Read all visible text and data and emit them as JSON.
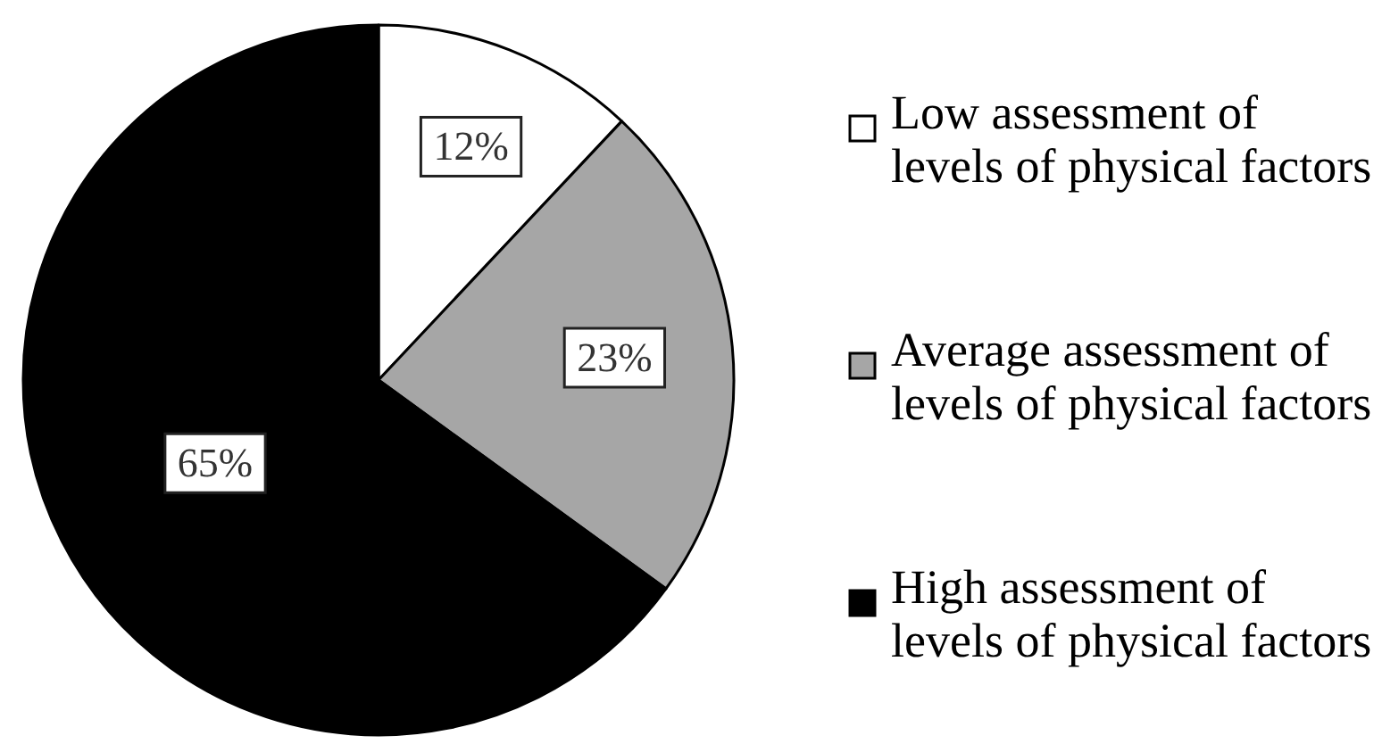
{
  "chart_data": {
    "type": "pie",
    "categories": [
      "Low assessment of levels of physical factors",
      "Average assessment of levels of physical factors",
      "High assessment of levels of physical factors"
    ],
    "values": [
      12,
      23,
      65
    ],
    "colors": [
      "#ffffff",
      "#a6a6a6",
      "#000000"
    ],
    "value_labels": [
      "12%",
      "23%",
      "65%"
    ],
    "legend": "right"
  }
}
